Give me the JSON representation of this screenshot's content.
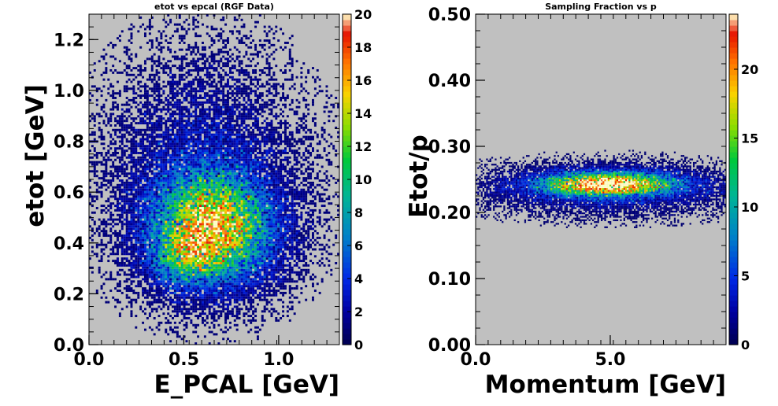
{
  "chart_data": [
    {
      "type": "heatmap",
      "title": "etot vs epcal (RGF Data)",
      "xlabel": "E_PCAL  [GeV]",
      "ylabel": "etot [GeV]",
      "xlim": [
        0,
        1.32
      ],
      "ylim": [
        0,
        1.3
      ],
      "xticks": [
        "0.0",
        "0.5",
        "1.0"
      ],
      "yticks": [
        "0.0",
        "0.2",
        "0.4",
        "0.6",
        "0.8",
        "1.0",
        "1.2"
      ],
      "zlim": [
        0,
        20
      ],
      "zticks": [
        "0",
        "2",
        "4",
        "6",
        "8",
        "10",
        "12",
        "14",
        "16",
        "18",
        "20"
      ],
      "grid": false,
      "legend": "colorbar-right",
      "clusters": [
        {
          "x": 0.65,
          "y": 0.46,
          "sx": 0.19,
          "sy": 0.13,
          "peak": 17
        },
        {
          "x": 0.5,
          "y": 0.34,
          "sx": 0.1,
          "sy": 0.06,
          "peak": 6
        },
        {
          "x": 0.6,
          "y": 0.7,
          "sx": 0.28,
          "sy": 0.24,
          "peak": 2.2
        }
      ]
    },
    {
      "type": "heatmap",
      "title": "Sampling Fraction vs p",
      "xlabel": "Momentum  [GeV]",
      "ylabel": "Etot/p",
      "xlim": [
        0,
        9.3
      ],
      "ylim": [
        0,
        0.5
      ],
      "xticks": [
        "0.0",
        "5.0"
      ],
      "yticks": [
        "0.00",
        "0.10",
        "0.20",
        "0.30",
        "0.40",
        "0.50"
      ],
      "zlim": [
        0,
        24
      ],
      "zticks": [
        "0",
        "5",
        "10",
        "15",
        "20"
      ],
      "grid": false,
      "legend": "colorbar-right",
      "clusters": [
        {
          "x": 4.9,
          "y": 0.243,
          "sx": 1.55,
          "sy": 0.011,
          "peak": 23
        },
        {
          "x": 5.0,
          "y": 0.235,
          "sx": 2.6,
          "sy": 0.02,
          "peak": 4
        }
      ]
    }
  ]
}
